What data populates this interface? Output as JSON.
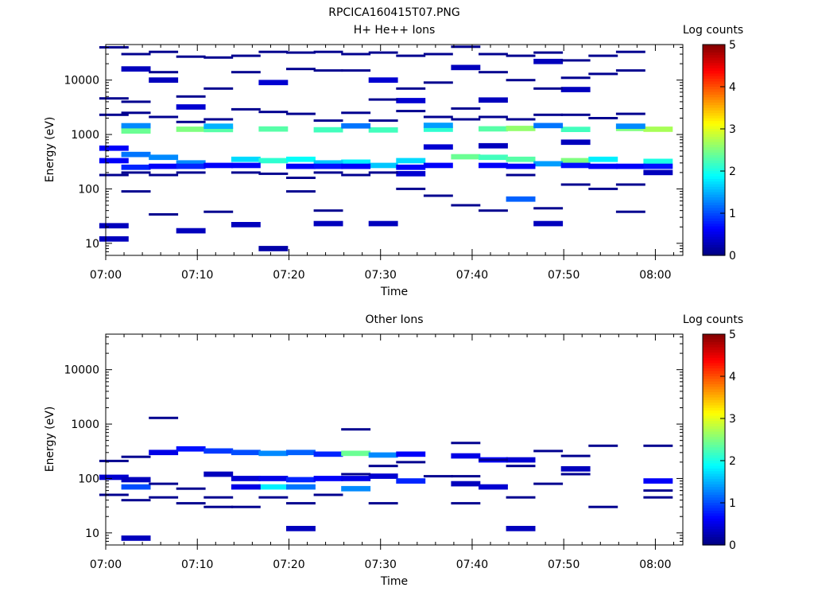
{
  "figure_title": "RPCICA160415T07.PNG",
  "chart_data": [
    {
      "type": "heatmap",
      "title": "H+ He++ Ions",
      "xlabel": "Time",
      "ylabel": "Energy (eV)",
      "x_ticks": [
        "07:00",
        "07:10",
        "07:20",
        "07:30",
        "07:40",
        "07:50",
        "08:00"
      ],
      "x_range_minutes": [
        0,
        63
      ],
      "y_scale": "log",
      "y_ticks": [
        "10",
        "100",
        "1000",
        "10000"
      ],
      "ylim": [
        6,
        45000
      ],
      "colorbar": {
        "label": "Log counts",
        "ticks": [
          "0",
          "1",
          "2",
          "3",
          "4",
          "5"
        ],
        "range": [
          0,
          5
        ]
      },
      "bins": [
        [
          3.3,
          1290,
          2.6
        ],
        [
          3.3,
          1160,
          2.4
        ],
        [
          9.3,
          1250,
          2.5
        ],
        [
          12.3,
          1230,
          2.3
        ],
        [
          18.3,
          1260,
          2.3
        ],
        [
          24.3,
          1220,
          2.2
        ],
        [
          30.3,
          1210,
          2.2
        ],
        [
          36.3,
          1250,
          2.1
        ],
        [
          42.3,
          1270,
          2.3
        ],
        [
          45.3,
          1290,
          2.6
        ],
        [
          51.3,
          1240,
          2.2
        ],
        [
          57.3,
          1290,
          2.5
        ],
        [
          60.3,
          1250,
          2.7
        ],
        [
          3.3,
          1450,
          1.3
        ],
        [
          12.3,
          1420,
          1.5
        ],
        [
          27.3,
          1440,
          1.2
        ],
        [
          36.3,
          1470,
          1.4
        ],
        [
          48.3,
          1460,
          1.2
        ],
        [
          57.3,
          1420,
          1.3
        ],
        [
          3.3,
          430,
          1.2
        ],
        [
          6.3,
          380,
          1.3
        ],
        [
          15.3,
          350,
          1.7
        ],
        [
          18.3,
          330,
          2.1
        ],
        [
          21.3,
          350,
          1.9
        ],
        [
          27.3,
          310,
          1.8
        ],
        [
          33.3,
          330,
          1.7
        ],
        [
          39.3,
          390,
          2.4
        ],
        [
          42.3,
          380,
          2.2
        ],
        [
          45.3,
          350,
          2.3
        ],
        [
          51.3,
          330,
          2.5
        ],
        [
          54.3,
          350,
          1.8
        ],
        [
          60.3,
          320,
          2.0
        ],
        [
          9.3,
          300,
          1.3
        ],
        [
          24.3,
          300,
          1.6
        ],
        [
          30.3,
          270,
          1.6
        ],
        [
          48.3,
          290,
          1.4
        ],
        [
          0.9,
          560,
          0.6
        ],
        [
          0.9,
          330,
          0.6
        ],
        [
          3.3,
          250,
          0.8
        ],
        [
          6.3,
          260,
          0.6
        ],
        [
          9.3,
          260,
          0.8
        ],
        [
          12.3,
          270,
          0.6
        ],
        [
          15.3,
          270,
          0.6
        ],
        [
          21.3,
          260,
          0.6
        ],
        [
          24.3,
          260,
          0.7
        ],
        [
          27.3,
          260,
          0.6
        ],
        [
          33.3,
          250,
          0.6
        ],
        [
          36.3,
          270,
          0.6
        ],
        [
          42.3,
          270,
          0.6
        ],
        [
          45.3,
          260,
          0.6
        ],
        [
          51.3,
          270,
          0.7
        ],
        [
          54.3,
          260,
          0.6
        ],
        [
          57.3,
          260,
          0.6
        ],
        [
          60.3,
          260,
          0.7
        ],
        [
          33.3,
          190,
          0.4
        ],
        [
          36.3,
          590,
          0.4
        ],
        [
          42.3,
          620,
          0.3
        ],
        [
          51.3,
          720,
          0.3
        ],
        [
          60.3,
          200,
          0.3
        ],
        [
          0.9,
          21,
          0.3
        ],
        [
          0.9,
          12,
          0.3
        ],
        [
          18.3,
          8,
          0.2
        ],
        [
          9.3,
          17,
          0.3
        ],
        [
          24.3,
          23,
          0.3
        ],
        [
          30.3,
          23,
          0.3
        ],
        [
          48.3,
          23,
          0.3
        ],
        [
          15.3,
          22,
          0.3
        ],
        [
          45.3,
          65,
          1.1
        ],
        [
          3.3,
          16000,
          0.3
        ],
        [
          6.3,
          10000,
          0.3
        ],
        [
          9.3,
          3200,
          0.4
        ],
        [
          18.3,
          9000,
          0.4
        ],
        [
          30.3,
          10000,
          0.4
        ],
        [
          33.3,
          4200,
          0.4
        ],
        [
          39.3,
          17000,
          0.3
        ],
        [
          42.3,
          4300,
          0.3
        ],
        [
          48.3,
          22000,
          0.3
        ],
        [
          51.3,
          6700,
          0.3
        ]
      ],
      "lines": [
        [
          0.9,
          40000
        ],
        [
          0.9,
          4600
        ],
        [
          0.9,
          2300
        ],
        [
          0.9,
          180
        ],
        [
          3.3,
          30000
        ],
        [
          3.3,
          4000
        ],
        [
          3.3,
          2500
        ],
        [
          3.3,
          200
        ],
        [
          3.3,
          90
        ],
        [
          6.3,
          33000
        ],
        [
          6.3,
          14000
        ],
        [
          6.3,
          2100
        ],
        [
          6.3,
          180
        ],
        [
          6.3,
          34
        ],
        [
          9.3,
          27000
        ],
        [
          9.3,
          5000
        ],
        [
          9.3,
          1700
        ],
        [
          9.3,
          200
        ],
        [
          12.3,
          26000
        ],
        [
          12.3,
          7000
        ],
        [
          12.3,
          1900
        ],
        [
          12.3,
          38
        ],
        [
          15.3,
          28000
        ],
        [
          15.3,
          14000
        ],
        [
          15.3,
          2900
        ],
        [
          15.3,
          200
        ],
        [
          18.3,
          33000
        ],
        [
          18.3,
          2600
        ],
        [
          18.3,
          190
        ],
        [
          21.3,
          32000
        ],
        [
          21.3,
          16000
        ],
        [
          21.3,
          2400
        ],
        [
          21.3,
          160
        ],
        [
          21.3,
          90
        ],
        [
          24.3,
          33000
        ],
        [
          24.3,
          15000
        ],
        [
          24.3,
          1800
        ],
        [
          24.3,
          200
        ],
        [
          24.3,
          40
        ],
        [
          27.3,
          30000
        ],
        [
          27.3,
          15000
        ],
        [
          27.3,
          2500
        ],
        [
          27.3,
          180
        ],
        [
          30.3,
          32000
        ],
        [
          30.3,
          4400
        ],
        [
          30.3,
          1800
        ],
        [
          30.3,
          200
        ],
        [
          33.3,
          28000
        ],
        [
          33.3,
          7000
        ],
        [
          33.3,
          2700
        ],
        [
          33.3,
          100
        ],
        [
          36.3,
          30000
        ],
        [
          36.3,
          9000
        ],
        [
          36.3,
          2100
        ],
        [
          36.3,
          75
        ],
        [
          39.3,
          41000
        ],
        [
          39.3,
          3000
        ],
        [
          39.3,
          1900
        ],
        [
          39.3,
          50
        ],
        [
          42.3,
          30000
        ],
        [
          42.3,
          14000
        ],
        [
          42.3,
          2100
        ],
        [
          42.3,
          40
        ],
        [
          45.3,
          28000
        ],
        [
          45.3,
          10000
        ],
        [
          45.3,
          1900
        ],
        [
          45.3,
          180
        ],
        [
          48.3,
          32000
        ],
        [
          48.3,
          7000
        ],
        [
          48.3,
          2300
        ],
        [
          48.3,
          44
        ],
        [
          51.3,
          23000
        ],
        [
          51.3,
          11000
        ],
        [
          51.3,
          2300
        ],
        [
          51.3,
          120
        ],
        [
          54.3,
          28000
        ],
        [
          54.3,
          13000
        ],
        [
          54.3,
          2000
        ],
        [
          54.3,
          100
        ],
        [
          57.3,
          33000
        ],
        [
          57.3,
          15000
        ],
        [
          57.3,
          2400
        ],
        [
          57.3,
          120
        ],
        [
          57.3,
          38
        ]
      ]
    },
    {
      "type": "heatmap",
      "title": "Other Ions",
      "xlabel": "Time",
      "ylabel": "Energy (eV)",
      "x_ticks": [
        "07:00",
        "07:10",
        "07:20",
        "07:30",
        "07:40",
        "07:50",
        "08:00"
      ],
      "x_range_minutes": [
        0,
        63
      ],
      "y_scale": "log",
      "y_ticks": [
        "10",
        "100",
        "1000",
        "10000"
      ],
      "ylim": [
        6,
        45000
      ],
      "colorbar": {
        "label": "Log counts",
        "ticks": [
          "0",
          "1",
          "2",
          "3",
          "4",
          "5"
        ],
        "range": [
          0,
          5
        ]
      },
      "bins": [
        [
          0.9,
          105,
          0.4
        ],
        [
          3.3,
          95,
          0.3
        ],
        [
          3.3,
          70,
          1.0
        ],
        [
          6.3,
          300,
          0.5
        ],
        [
          9.3,
          350,
          0.7
        ],
        [
          12.3,
          320,
          0.9
        ],
        [
          15.3,
          300,
          1.0
        ],
        [
          18.3,
          290,
          1.3
        ],
        [
          21.3,
          300,
          1.1
        ],
        [
          24.3,
          280,
          0.8
        ],
        [
          27.3,
          290,
          2.4
        ],
        [
          30.3,
          270,
          1.3
        ],
        [
          33.3,
          280,
          0.6
        ],
        [
          39.3,
          260,
          0.5
        ],
        [
          42.3,
          220,
          0.6
        ],
        [
          45.3,
          220,
          0.4
        ],
        [
          12.3,
          120,
          0.3
        ],
        [
          15.3,
          100,
          0.4
        ],
        [
          18.3,
          100,
          0.5
        ],
        [
          21.3,
          95,
          0.8
        ],
        [
          24.3,
          100,
          0.6
        ],
        [
          27.3,
          100,
          0.5
        ],
        [
          30.3,
          110,
          0.4
        ],
        [
          33.3,
          90,
          0.8
        ],
        [
          39.3,
          80,
          0.3
        ],
        [
          42.3,
          70,
          0.4
        ],
        [
          51.3,
          150,
          0.3
        ],
        [
          60.3,
          90,
          0.6
        ],
        [
          18.3,
          70,
          1.8
        ],
        [
          21.3,
          70,
          1.2
        ],
        [
          27.3,
          65,
          1.3
        ],
        [
          15.3,
          70,
          0.5
        ],
        [
          3.3,
          8,
          0.3
        ],
        [
          21.3,
          12,
          0.3
        ],
        [
          45.3,
          12,
          0.3
        ]
      ],
      "lines": [
        [
          0.9,
          210
        ],
        [
          0.9,
          50
        ],
        [
          3.3,
          250
        ],
        [
          3.3,
          40
        ],
        [
          6.3,
          1300
        ],
        [
          6.3,
          80
        ],
        [
          6.3,
          45
        ],
        [
          9.3,
          65
        ],
        [
          9.3,
          35
        ],
        [
          12.3,
          45
        ],
        [
          12.3,
          30
        ],
        [
          15.3,
          30
        ],
        [
          18.3,
          45
        ],
        [
          21.3,
          35
        ],
        [
          24.3,
          50
        ],
        [
          27.3,
          800
        ],
        [
          27.3,
          120
        ],
        [
          30.3,
          170
        ],
        [
          30.3,
          35
        ],
        [
          33.3,
          200
        ],
        [
          36.3,
          110
        ],
        [
          39.3,
          450
        ],
        [
          39.3,
          110
        ],
        [
          39.3,
          35
        ],
        [
          42.3,
          220
        ],
        [
          45.3,
          170
        ],
        [
          45.3,
          45
        ],
        [
          48.3,
          320
        ],
        [
          48.3,
          80
        ],
        [
          51.3,
          260
        ],
        [
          51.3,
          120
        ],
        [
          54.3,
          400
        ],
        [
          54.3,
          30
        ],
        [
          60.3,
          400
        ],
        [
          60.3,
          60
        ],
        [
          60.3,
          45
        ]
      ]
    }
  ]
}
